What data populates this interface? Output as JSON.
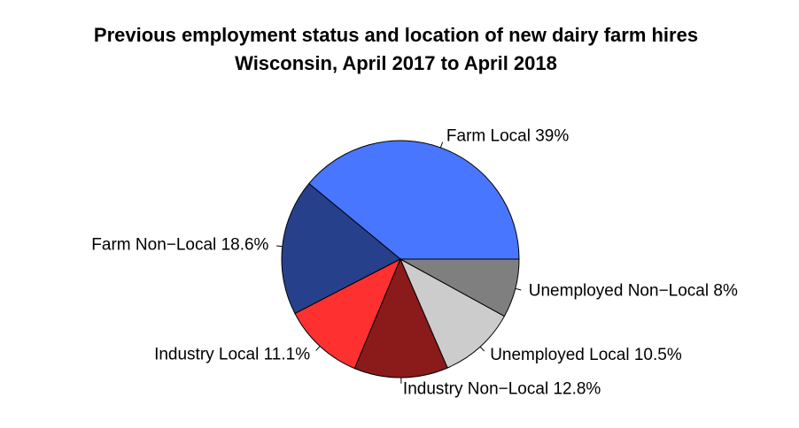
{
  "chart_data": {
    "type": "pie",
    "title": "Previous employment status and location of new dairy farm hires",
    "subtitle": "Wisconsin, April 2017 to April 2018",
    "categories": [
      "Farm Local",
      "Farm Non−Local",
      "Industry Local",
      "Industry Non−Local",
      "Unemployed Local",
      "Unemployed Non−Local"
    ],
    "values": [
      39,
      18.6,
      11.1,
      12.8,
      10.5,
      8
    ],
    "value_labels": [
      "39%",
      "18.6%",
      "11.1%",
      "12.8%",
      "10.5%",
      "8%"
    ],
    "colors": [
      "#4876ff",
      "#27408b",
      "#ff3030",
      "#8b1a1a",
      "#cccccc",
      "#7f7f7f"
    ]
  }
}
